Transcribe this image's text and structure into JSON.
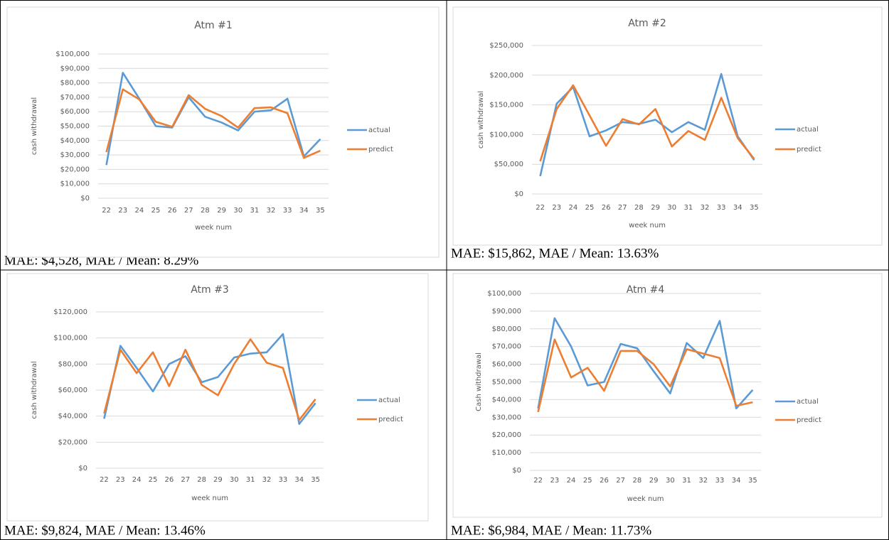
{
  "chart_data": [
    {
      "type": "line",
      "title": "Atm #1",
      "x_label": "week num",
      "y_label": "cash withdrawal",
      "categories": [
        "22",
        "23",
        "24",
        "25",
        "26",
        "27",
        "28",
        "29",
        "30",
        "31",
        "32",
        "33",
        "34",
        "35"
      ],
      "series": [
        {
          "name": "actual",
          "color": "#5b9bd5",
          "values": [
            23000,
            87000,
            69000,
            50000,
            49000,
            70000,
            56500,
            52500,
            47000,
            60000,
            61000,
            69000,
            29000,
            41000
          ]
        },
        {
          "name": "predict",
          "color": "#ed7d31",
          "values": [
            32000,
            75500,
            68500,
            53000,
            49500,
            71500,
            62000,
            57000,
            49000,
            62500,
            63000,
            59000,
            28000,
            33000
          ]
        }
      ],
      "ylim": [
        0,
        100000
      ],
      "yticks": [
        {
          "value": 0,
          "label": "$0"
        },
        {
          "value": 10000,
          "label": "$10,000"
        },
        {
          "value": 20000,
          "label": "$20,000"
        },
        {
          "value": 30000,
          "label": "$30,000"
        },
        {
          "value": 40000,
          "label": "$40,000"
        },
        {
          "value": 50000,
          "label": "$50,000"
        },
        {
          "value": 60000,
          "label": "$60,000"
        },
        {
          "value": 70000,
          "label": "$70,000"
        },
        {
          "value": 80000,
          "label": "$80,000"
        },
        {
          "value": 90000,
          "label": "$90,000"
        },
        {
          "value": 100000,
          "label": "$100,000"
        }
      ],
      "grid": true,
      "legend": "right"
    },
    {
      "type": "line",
      "title": "Atm #2",
      "x_label": "week num",
      "y_label": "cash withdrawal",
      "categories": [
        "22",
        "23",
        "24",
        "25",
        "26",
        "27",
        "28",
        "29",
        "30",
        "31",
        "32",
        "33",
        "34",
        "35"
      ],
      "series": [
        {
          "name": "actual",
          "color": "#5b9bd5",
          "values": [
            30000,
            152000,
            180000,
            97000,
            107000,
            121000,
            118000,
            125000,
            104000,
            121000,
            108000,
            202000,
            97000,
            57000
          ]
        },
        {
          "name": "predict",
          "color": "#ed7d31",
          "values": [
            55000,
            143000,
            183000,
            132000,
            81000,
            126000,
            117000,
            143000,
            80000,
            106000,
            91000,
            162000,
            94000,
            59000
          ]
        }
      ],
      "ylim": [
        0,
        250000
      ],
      "yticks": [
        {
          "value": 0,
          "label": "$0"
        },
        {
          "value": 50000,
          "label": "$50,000"
        },
        {
          "value": 100000,
          "label": "$100,000"
        },
        {
          "value": 150000,
          "label": "$150,000"
        },
        {
          "value": 200000,
          "label": "$200,000"
        },
        {
          "value": 250000,
          "label": "$250,000"
        }
      ],
      "grid": true,
      "legend": "right"
    },
    {
      "type": "line",
      "title": "Atm #3",
      "x_label": "week num",
      "y_label": "cash withdrawal",
      "categories": [
        "22",
        "23",
        "24",
        "25",
        "26",
        "27",
        "28",
        "29",
        "30",
        "31",
        "32",
        "33",
        "34",
        "35"
      ],
      "series": [
        {
          "name": "actual",
          "color": "#5b9bd5",
          "values": [
            38000,
            94000,
            77000,
            59000,
            80000,
            86000,
            66000,
            70000,
            85000,
            88000,
            89000,
            103000,
            34000,
            50000
          ]
        },
        {
          "name": "predict",
          "color": "#ed7d31",
          "values": [
            42000,
            91000,
            73000,
            89000,
            63000,
            91000,
            64000,
            56000,
            80000,
            99000,
            81000,
            77000,
            37000,
            53000
          ]
        }
      ],
      "ylim": [
        0,
        120000
      ],
      "yticks": [
        {
          "value": 0,
          "label": "$0"
        },
        {
          "value": 20000,
          "label": "$20,000"
        },
        {
          "value": 40000,
          "label": "$40,000"
        },
        {
          "value": 60000,
          "label": "$60,000"
        },
        {
          "value": 80000,
          "label": "$80,000"
        },
        {
          "value": 100000,
          "label": "$100,000"
        },
        {
          "value": 120000,
          "label": "$120,000"
        }
      ],
      "grid": true,
      "legend": "right"
    },
    {
      "type": "line",
      "title": "Atm #4",
      "x_label": "week num",
      "y_label": "Cash withdrawal",
      "categories": [
        "22",
        "23",
        "24",
        "25",
        "26",
        "27",
        "28",
        "29",
        "30",
        "31",
        "32",
        "33",
        "34",
        "35"
      ],
      "series": [
        {
          "name": "actual",
          "color": "#5b9bd5",
          "values": [
            35000,
            86000,
            70000,
            48000,
            50000,
            71500,
            69000,
            56000,
            43500,
            72000,
            63500,
            84500,
            35000,
            45500
          ]
        },
        {
          "name": "predict",
          "color": "#ed7d31",
          "values": [
            33000,
            74000,
            52500,
            58000,
            45000,
            67500,
            67500,
            60000,
            47500,
            68500,
            66000,
            63500,
            36500,
            38500
          ]
        }
      ],
      "ylim": [
        0,
        100000
      ],
      "yticks": [
        {
          "value": 0,
          "label": "$0"
        },
        {
          "value": 10000,
          "label": "$10,000"
        },
        {
          "value": 20000,
          "label": "$20,000"
        },
        {
          "value": 30000,
          "label": "$30,000"
        },
        {
          "value": 40000,
          "label": "$40,000"
        },
        {
          "value": 50000,
          "label": "$50,000"
        },
        {
          "value": 60000,
          "label": "$60,000"
        },
        {
          "value": 70000,
          "label": "$70,000"
        },
        {
          "value": 80000,
          "label": "$80,000"
        },
        {
          "value": 90000,
          "label": "$90,000"
        },
        {
          "value": 100000,
          "label": "$100,000"
        }
      ],
      "grid": true,
      "legend": "right"
    }
  ],
  "captions": [
    "MAE: $4,528, MAE / Mean: 8.29%",
    "MAE: $15,862, MAE / Mean: 13.63%",
    "MAE: $9,824, MAE / Mean: 13.46%",
    "MAE: $6,984, MAE / Mean: 11.73%"
  ]
}
